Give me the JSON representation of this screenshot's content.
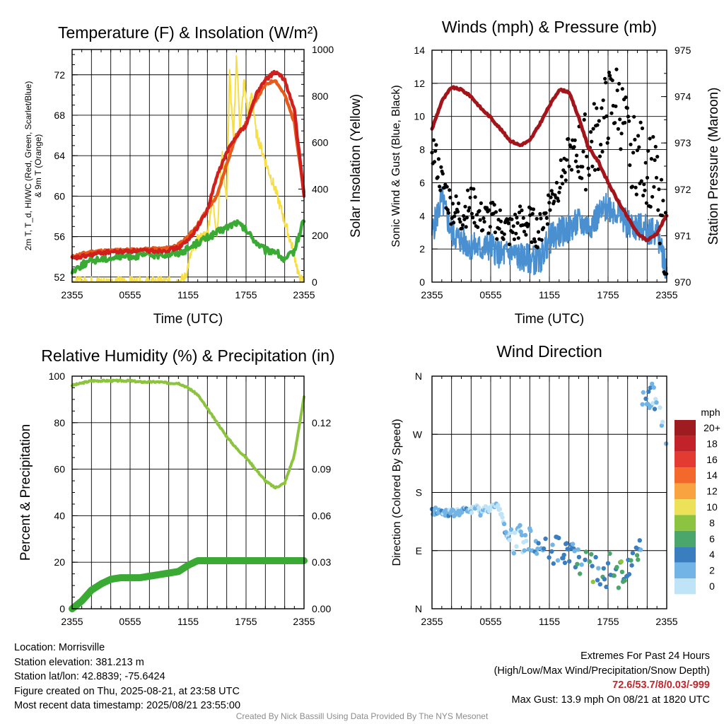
{
  "chart_data": [
    {
      "type": "line",
      "title": "Temperature (F) & Insolation (W/m²)",
      "xlabel": "Time (UTC)",
      "ylabel": "2m T, T_d, HI/WC (Red, Green, Scarlet/Blue) & 9m T (Orange)",
      "y2label": "Solar Insolation (Yellow)",
      "x_ticks": [
        "2355",
        "0555",
        "1155",
        "1755",
        "2355"
      ],
      "ylim": [
        51.5,
        74.5
      ],
      "y_ticks": [
        52,
        56,
        60,
        64,
        68,
        72
      ],
      "y2lim": [
        0,
        1000
      ],
      "y2_ticks": [
        0,
        200,
        400,
        600,
        800,
        1000
      ],
      "grid": true,
      "series": [
        {
          "axis": "left",
          "color": "#e85a1c",
          "x": [
            0,
            1,
            2,
            3,
            4,
            5,
            6,
            7,
            8,
            9,
            10,
            11,
            12,
            13,
            14,
            15,
            16,
            17,
            18,
            19,
            20,
            21,
            22,
            23,
            24
          ],
          "values": [
            54.0,
            54.3,
            54.5,
            54.6,
            54.6,
            54.7,
            54.7,
            54.7,
            54.8,
            54.8,
            54.9,
            55.2,
            56.0,
            57.2,
            58.7,
            60.0,
            63.2,
            66.0,
            67.2,
            69.5,
            71.0,
            71.5,
            70.0,
            67.3,
            60.3
          ]
        },
        {
          "axis": "left",
          "color": "#d0201e",
          "x": [
            0,
            1,
            2,
            3,
            4,
            5,
            6,
            7,
            8,
            9,
            10,
            11,
            12,
            13,
            14,
            15,
            16,
            17,
            18,
            19,
            20,
            21,
            22,
            23,
            24
          ],
          "values": [
            53.8,
            54.0,
            54.2,
            54.4,
            54.5,
            54.5,
            54.6,
            54.6,
            54.6,
            54.6,
            54.7,
            54.9,
            55.6,
            57.0,
            58.6,
            62.0,
            64.3,
            66.0,
            67.0,
            70.0,
            71.5,
            72.3,
            71.5,
            68.5,
            60.0
          ]
        },
        {
          "axis": "left",
          "color": "#3aaa35",
          "x": [
            0,
            1,
            2,
            3,
            4,
            5,
            6,
            7,
            8,
            9,
            10,
            11,
            12,
            13,
            14,
            15,
            16,
            17,
            18,
            19,
            20,
            21,
            22,
            23,
            24
          ],
          "values": [
            52.6,
            53.2,
            53.6,
            53.8,
            53.9,
            54.0,
            54.1,
            54.1,
            54.2,
            54.2,
            54.3,
            54.4,
            54.8,
            55.4,
            55.9,
            56.4,
            56.9,
            57.4,
            56.6,
            55.5,
            54.6,
            54.6,
            53.6,
            54.6,
            57.8
          ]
        },
        {
          "axis": "right",
          "color": "#f7de45",
          "x": [
            0,
            2,
            4,
            6,
            8,
            10,
            11,
            11.7,
            12.3,
            13,
            14,
            14.5,
            15,
            15.5,
            16,
            16.3,
            16.7,
            17,
            17.4,
            17.8,
            18.2,
            18.6,
            19,
            20,
            21,
            22,
            23,
            23.5,
            24
          ],
          "values": [
            0,
            0,
            0,
            0,
            0,
            0,
            0,
            20,
            120,
            180,
            210,
            360,
            210,
            560,
            340,
            900,
            600,
            980,
            650,
            870,
            710,
            820,
            650,
            520,
            400,
            260,
            120,
            15,
            0
          ]
        }
      ]
    },
    {
      "type": "scatter",
      "title": "Winds (mph) & Pressure (mb)",
      "xlabel": "Time (UTC)",
      "ylabel": "Sonic Wind & Gust (Blue, Black)",
      "y2label": "Station Pressure (Maroon)",
      "x_ticks": [
        "2355",
        "0555",
        "1155",
        "1755",
        "2355"
      ],
      "ylim": [
        0,
        14
      ],
      "y_ticks": [
        0,
        2,
        4,
        6,
        8,
        10,
        12,
        14
      ],
      "y2lim": [
        970,
        975
      ],
      "y2_ticks": [
        970,
        971,
        972,
        973,
        974,
        975
      ],
      "grid": true,
      "series": [
        {
          "name": "Wind",
          "color": "#4a90d0",
          "x": [
            0,
            1,
            2,
            3,
            4,
            5,
            6,
            7,
            8,
            9,
            10,
            11,
            12,
            13,
            14,
            15,
            16,
            17,
            18,
            19,
            20,
            21,
            22,
            23,
            24
          ],
          "values": [
            3.0,
            5.0,
            3.0,
            2.5,
            2.2,
            2.0,
            2.2,
            1.6,
            1.8,
            1.5,
            1.4,
            1.3,
            2.6,
            3.0,
            3.2,
            3.6,
            3.4,
            4.0,
            4.6,
            4.2,
            3.5,
            3.3,
            3.2,
            3.0,
            0.8
          ]
        },
        {
          "name": "Gust",
          "color": "#000000",
          "x": [
            0,
            1,
            2,
            3,
            4,
            5,
            6,
            7,
            8,
            9,
            10,
            11,
            12,
            13,
            14,
            15,
            16,
            17,
            18,
            19,
            20,
            21,
            22,
            23,
            24
          ],
          "values": [
            8.3,
            6.0,
            4.5,
            4.0,
            4.8,
            3.8,
            3.8,
            3.5,
            3.0,
            3.6,
            3.5,
            3.0,
            4.8,
            6.0,
            7.8,
            7.5,
            8.0,
            9.0,
            10.5,
            11.0,
            8.5,
            7.5,
            7.0,
            6.0,
            1.5
          ]
        },
        {
          "name": "Pressure",
          "axis": "right",
          "color": "#a3151b",
          "x": [
            0,
            1,
            2,
            3,
            4,
            5,
            6,
            7,
            8,
            9,
            10,
            11,
            12,
            13,
            14,
            15,
            16,
            17,
            18,
            19,
            20,
            21,
            22,
            23,
            24
          ],
          "values": [
            973.3,
            973.9,
            974.2,
            974.15,
            974.0,
            973.75,
            973.55,
            973.3,
            973.05,
            972.95,
            973.05,
            973.4,
            973.8,
            974.15,
            974.1,
            973.55,
            972.9,
            972.6,
            972.15,
            971.75,
            971.4,
            971.05,
            970.9,
            971.05,
            971.45
          ]
        }
      ]
    },
    {
      "type": "line",
      "title": "Relative Humidity (%) & Precipitation (in)",
      "xlabel": "",
      "ylabel": "Percent & Precipitation",
      "x_ticks": [
        "2355",
        "0555",
        "1155",
        "1755",
        "2355"
      ],
      "ylim": [
        0,
        100
      ],
      "y_ticks": [
        0,
        20,
        40,
        60,
        80,
        100
      ],
      "y2lim": [
        0,
        0.15
      ],
      "y2_ticks": [
        "0.00",
        "0.03",
        "0.06",
        "0.09",
        "0.12"
      ],
      "grid": true,
      "series": [
        {
          "color": "#8cc43f",
          "x": [
            0,
            1,
            2,
            3,
            4,
            5,
            6,
            7,
            8,
            9,
            10,
            11,
            12,
            13,
            14,
            15,
            16,
            17,
            18,
            19,
            20,
            21,
            22,
            23,
            24
          ],
          "values": [
            96,
            97,
            98,
            98,
            98,
            98,
            98,
            97.5,
            97.5,
            97.5,
            97,
            97,
            95,
            92,
            86,
            80,
            74,
            69,
            65,
            60,
            55,
            52,
            54,
            66,
            91
          ]
        },
        {
          "axis": "right",
          "color": "#3aaa35",
          "x": [
            0,
            1,
            2,
            3,
            4,
            5,
            6,
            7,
            8,
            9,
            10,
            11,
            12,
            13,
            14,
            15,
            16,
            17,
            18,
            19,
            20,
            21,
            22,
            23,
            24
          ],
          "values": [
            0,
            0.005,
            0.012,
            0.016,
            0.019,
            0.02,
            0.02,
            0.02,
            0.021,
            0.022,
            0.023,
            0.024,
            0.028,
            0.031,
            0.031,
            0.031,
            0.031,
            0.031,
            0.031,
            0.031,
            0.031,
            0.031,
            0.031,
            0.031,
            0.031
          ]
        }
      ]
    },
    {
      "type": "scatter",
      "title": "Wind Direction",
      "xlabel": "",
      "ylabel": "Direction (Colored By Speed)",
      "x_ticks": [
        "2355",
        "0555",
        "1155",
        "1755",
        "2355"
      ],
      "y_ticks": [
        "N",
        "E",
        "S",
        "W",
        "N"
      ],
      "ylim": [
        0,
        360
      ],
      "grid": true,
      "legend": {
        "title": "mph",
        "labels": [
          "20+",
          "18",
          "16",
          "14",
          "12",
          "10",
          "8",
          "6",
          "4",
          "2",
          "0"
        ],
        "colors": [
          "#9e1b1f",
          "#c2222a",
          "#e33b32",
          "#f3692b",
          "#f8a340",
          "#ede15a",
          "#8cc43f",
          "#4aa66a",
          "#3a7ebf",
          "#72b4e6",
          "#bfe4f7"
        ]
      },
      "series": [
        {
          "name": "Direction",
          "x": [
            0,
            0.5,
            1,
            1.5,
            2,
            2.5,
            3,
            3.5,
            4,
            4.5,
            5,
            5.5,
            6,
            6.5,
            7,
            7.5,
            8,
            8.5,
            9,
            9.5,
            10,
            10.5,
            11,
            11.5,
            12,
            12.5,
            13,
            13.5,
            14,
            14.5,
            15,
            15.5,
            16,
            16.5,
            17,
            17.5,
            18,
            18.5,
            19,
            19.5,
            20,
            20.5,
            21,
            21.5,
            22,
            22.5,
            23,
            23.5,
            24
          ],
          "values": [
            150,
            152,
            148,
            150,
            147,
            149,
            150,
            153,
            152,
            156,
            150,
            155,
            157,
            158,
            152,
            120,
            105,
            100,
            110,
            95,
            110,
            100,
            105,
            98,
            92,
            88,
            95,
            82,
            90,
            85,
            70,
            80,
            75,
            60,
            65,
            50,
            58,
            75,
            45,
            55,
            62,
            70,
            80,
            90,
            345,
            330,
            315,
            280,
            240
          ],
          "speeds": [
            3,
            3,
            3,
            3,
            3,
            3,
            3,
            3,
            2,
            2,
            2,
            2,
            1,
            1,
            1,
            3,
            2,
            2,
            2,
            3,
            2,
            3,
            4,
            4,
            4,
            4,
            5,
            4,
            5,
            4,
            5,
            5,
            6,
            7,
            5,
            6,
            6,
            5,
            7,
            7,
            5,
            6,
            6,
            4,
            4,
            3,
            3,
            2,
            2
          ]
        }
      ]
    }
  ],
  "info": {
    "location": "Location: Morrisville",
    "elevation": "Station elevation: 381.213 m",
    "latlon": "Station lat/lon: 42.8839; -75.6424",
    "created": "Figure created on Thu, 2025-08-21, at 23:58 UTC",
    "recent": "Most recent data timestamp: 2025/08/21 23:55:00"
  },
  "extremes": {
    "title": "Extremes For Past 24 Hours",
    "subtitle": "(High/Low/Max Wind/Precipitation/Snow Depth)",
    "values": "72.6/53.7/8/0.03/-999",
    "gust": "Max Gust: 13.9 mph On 08/21 at 1820 UTC"
  },
  "credit": "Created By Nick Bassill Using Data Provided By The NYS Mesonet"
}
